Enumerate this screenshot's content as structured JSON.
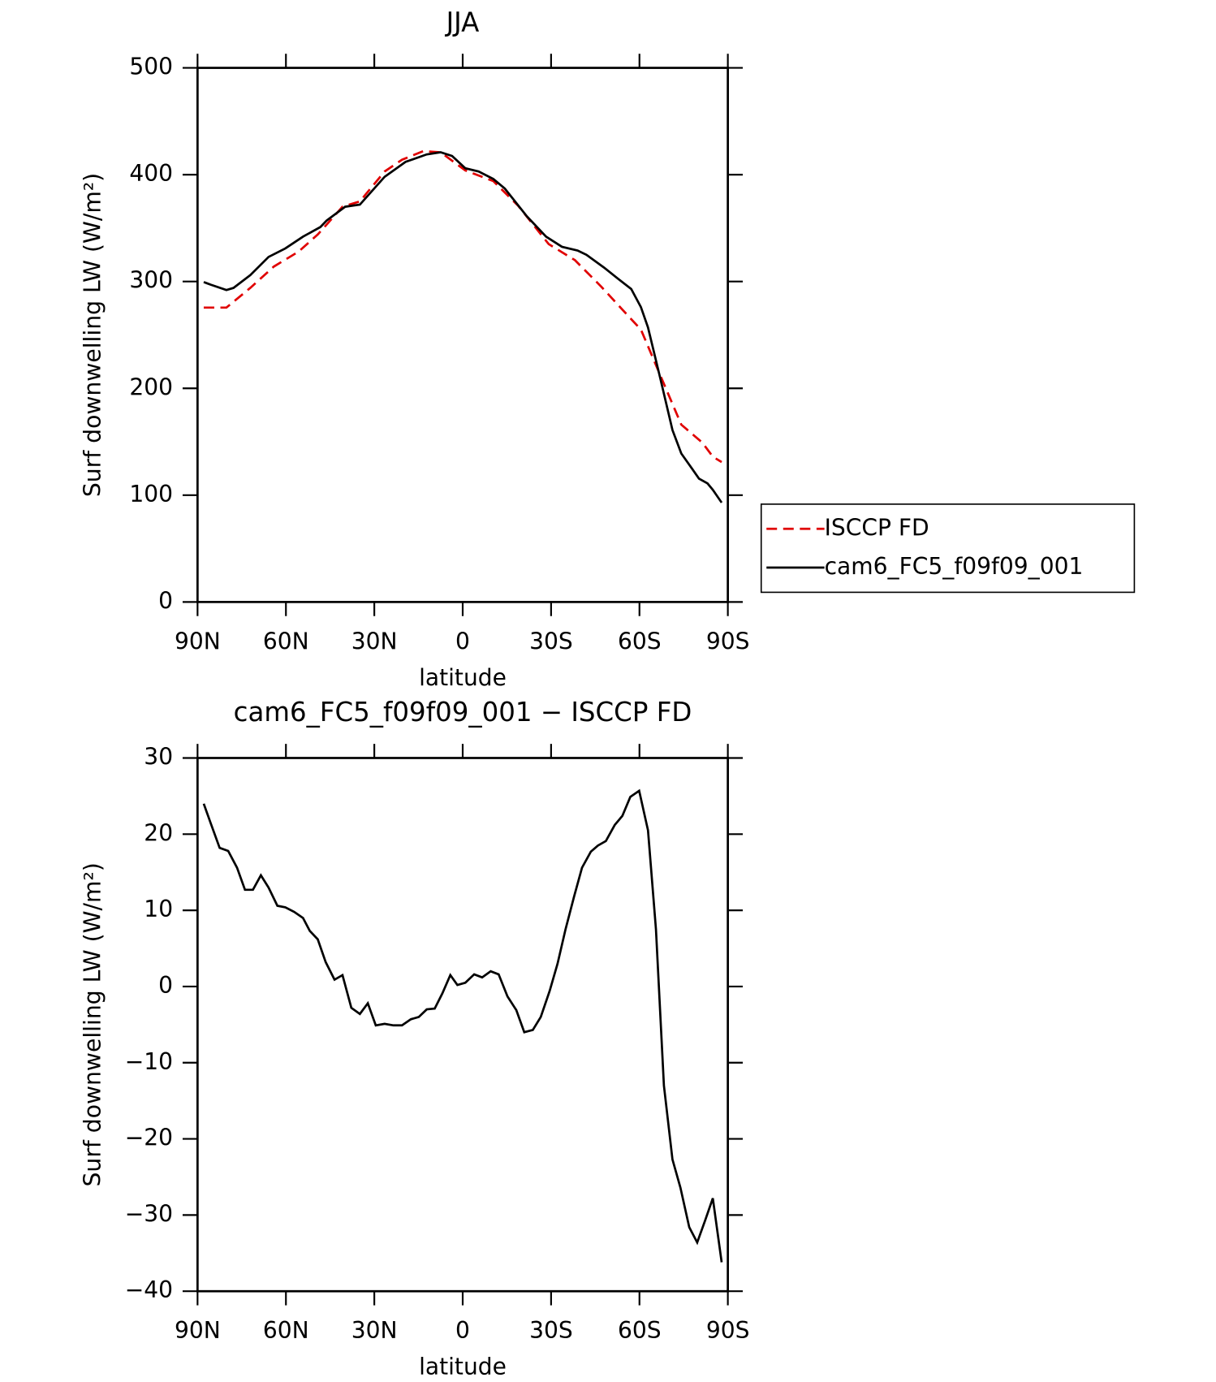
{
  "chart_data": [
    {
      "type": "line",
      "title": "JJA",
      "x_label": "latitude",
      "y_label": "Surf downwelling LW (W/m²)",
      "xlim": [
        90,
        -90
      ],
      "xticks": [
        {
          "value": 90,
          "label": "90N"
        },
        {
          "value": 60,
          "label": "60N"
        },
        {
          "value": 30,
          "label": "30N"
        },
        0,
        {
          "value": -30,
          "label": "30S"
        },
        {
          "value": -60,
          "label": "60S"
        },
        {
          "value": -90,
          "label": "90S"
        }
      ],
      "ylim": [
        0,
        500
      ],
      "yticks": [
        0,
        100,
        200,
        300,
        400,
        500
      ],
      "legend": "right",
      "series": [
        {
          "name": "ISCCP FD",
          "color": "#e00000",
          "dash": true,
          "x": [
            87.9,
            80.2,
            72.1,
            64.1,
            55.7,
            49.2,
            40.8,
            34.9,
            26.5,
            20.6,
            13.4,
            7.5,
            -0.9,
            -10.4,
            -18.8,
            -29.2,
            -38.1,
            -47.1,
            -55.1,
            -60.5,
            -67.1,
            -74.2,
            -81.4,
            -84.9,
            -87.9
          ],
          "values": [
            275.6,
            275.6,
            294,
            314,
            328,
            344,
            370,
            375,
            403,
            414,
            422,
            421,
            404,
            394,
            371,
            335,
            320,
            295,
            271,
            255,
            212,
            166,
            149,
            136,
            131
          ]
        },
        {
          "name": "cam6_FC5_f09f09_001",
          "color": "#000000",
          "dash": false,
          "x": [
            87.9,
            85.5,
            80.2,
            77.8,
            72.1,
            65.9,
            60.2,
            54.2,
            48.3,
            46.2,
            39.9,
            34.9,
            26.5,
            19.4,
            12.2,
            7.5,
            3.6,
            -0.9,
            -5.4,
            -10.4,
            -14.3,
            -21.8,
            -28.3,
            -33.7,
            -39,
            -42,
            -48,
            -53,
            -57.2,
            -60.5,
            -62.9,
            -67.1,
            -71.2,
            -74.2,
            -77.8,
            -80.2,
            -83.1,
            -84.9,
            -87.9
          ],
          "values": [
            299.5,
            297,
            292,
            294,
            306,
            323,
            331,
            342,
            351,
            357,
            370,
            372,
            398,
            412,
            419,
            421,
            417.5,
            406,
            403,
            396,
            387,
            361,
            342,
            332.5,
            329,
            325,
            313,
            302,
            293,
            276,
            257,
            209,
            161,
            139,
            125,
            115.5,
            111,
            105,
            93
          ]
        }
      ]
    },
    {
      "type": "line",
      "title": "cam6_FC5_f09f09_001 − ISCCP FD",
      "x_label": "latitude",
      "y_label": "Surf downwelling LW (W/m²)",
      "xlim": [
        90,
        -90
      ],
      "xticks": [
        {
          "value": 90,
          "label": "90N"
        },
        {
          "value": 60,
          "label": "60N"
        },
        {
          "value": 30,
          "label": "30N"
        },
        0,
        {
          "value": -30,
          "label": "30S"
        },
        {
          "value": -60,
          "label": "60S"
        },
        {
          "value": -90,
          "label": "90S"
        }
      ],
      "ylim": [
        -40,
        30
      ],
      "yticks": [
        {
          "value": -40,
          "label": "−40"
        },
        {
          "value": -30,
          "label": "−30"
        },
        {
          "value": -20,
          "label": "−20"
        },
        {
          "value": -10,
          "label": "−10"
        },
        0,
        10,
        20,
        30
      ],
      "color": "#000000",
      "x": [
        87.9,
        85.5,
        82.5,
        79.6,
        76.6,
        73.9,
        71.2,
        68.5,
        65.9,
        62.9,
        60.2,
        57.2,
        54.2,
        51.9,
        49.2,
        46.5,
        43.5,
        40.8,
        37.8,
        34.9,
        32.2,
        29.5,
        26.5,
        23.5,
        20.6,
        17.6,
        14.9,
        12.2,
        9.5,
        6.9,
        4.2,
        1.8,
        -0.9,
        -3.9,
        -6.6,
        -9.5,
        -12.2,
        -15.2,
        -18.2,
        -20.9,
        -23.8,
        -26.5,
        -29.5,
        -32.2,
        -34.9,
        -37.8,
        -40.5,
        -43.5,
        -45.9,
        -48.6,
        -51.6,
        -54.2,
        -56.9,
        -59.9,
        -62.9,
        -65.6,
        -68.3,
        -71.2,
        -73.9,
        -76.9,
        -79.6,
        -82.3,
        -84.9,
        -87.9
      ],
      "values": [
        24,
        21.4,
        18.2,
        17.8,
        15.6,
        12.7,
        12.7,
        14.6,
        13,
        10.6,
        10.4,
        9.8,
        9,
        7.3,
        6.2,
        3.2,
        0.9,
        1.5,
        -2.8,
        -3.6,
        -2.2,
        -5.1,
        -4.9,
        -5.1,
        -5.1,
        -4.3,
        -4,
        -3,
        -2.9,
        -0.9,
        1.5,
        0.2,
        0.5,
        1.6,
        1.2,
        2,
        1.6,
        -1.3,
        -3.1,
        -6,
        -5.7,
        -4,
        -0.6,
        3,
        7.5,
        11.8,
        15.6,
        17.7,
        18.5,
        19.1,
        21.2,
        22.4,
        24.9,
        25.7,
        20.5,
        7.5,
        -13,
        -22.7,
        -26.4,
        -31.6,
        -33.6,
        -30.7,
        -27.8,
        -36.2
      ]
    }
  ]
}
